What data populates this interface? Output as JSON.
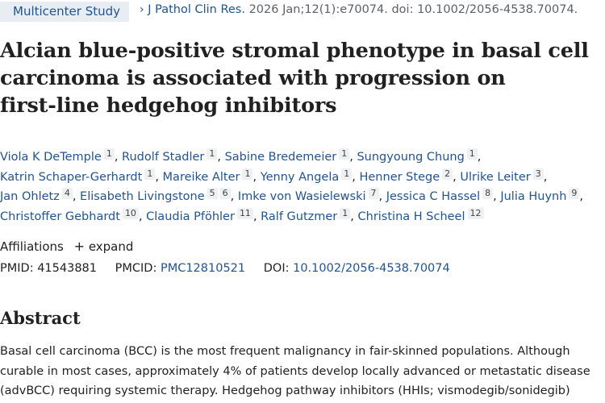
{
  "header": {
    "badge": "Multicenter Study",
    "chevron": "›",
    "journal": "J Pathol Clin Res.",
    "citation_rest": " 2026 Jan;12(1):e70074. doi: 10.1002/2056-4538.70074."
  },
  "article": {
    "title": "Alcian blue‑positive stromal phenotype in basal cell carcinoma is associated with progression on first‑line hedgehog inhibitors"
  },
  "authors": [
    {
      "name": "Viola K DeTemple",
      "affils": [
        "1"
      ]
    },
    {
      "name": "Rudolf Stadler",
      "affils": [
        "1"
      ]
    },
    {
      "name": "Sabine Bredemeier",
      "affils": [
        "1"
      ]
    },
    {
      "name": "Sungyoung Chung",
      "affils": [
        "1"
      ]
    },
    {
      "name": "Katrin Schaper-Gerhardt",
      "affils": [
        "1"
      ]
    },
    {
      "name": "Mareike Alter",
      "affils": [
        "1"
      ]
    },
    {
      "name": "Yenny Angela",
      "affils": [
        "1"
      ]
    },
    {
      "name": "Henner Stege",
      "affils": [
        "2"
      ]
    },
    {
      "name": "Ulrike Leiter",
      "affils": [
        "3"
      ]
    },
    {
      "name": "Jan Ohletz",
      "affils": [
        "4"
      ]
    },
    {
      "name": "Elisabeth Livingstone",
      "affils": [
        "5",
        "6"
      ]
    },
    {
      "name": "Imke von Wasielewski",
      "affils": [
        "7"
      ]
    },
    {
      "name": "Jessica C Hassel",
      "affils": [
        "8"
      ]
    },
    {
      "name": "Julia Huynh",
      "affils": [
        "9"
      ]
    },
    {
      "name": "Christoffer Gebhardt",
      "affils": [
        "10"
      ]
    },
    {
      "name": "Claudia Pföhler",
      "affils": [
        "11"
      ]
    },
    {
      "name": "Ralf Gutzmer",
      "affils": [
        "1"
      ]
    },
    {
      "name": "Christina H Scheel",
      "affils": [
        "12"
      ]
    }
  ],
  "affiliations": {
    "label": "Affiliations",
    "expand_icon": "+",
    "expand_label": "expand"
  },
  "ids": {
    "pmid_label": "PMID:",
    "pmid": "41543881",
    "pmcid_label": "PMCID:",
    "pmcid": "PMC12810521",
    "doi_label": "DOI:",
    "doi": "10.1002/2056-4538.70074"
  },
  "abstract": {
    "heading": "Abstract",
    "text": "Basal cell carcinoma (BCC) is the most frequent malignancy in fair-skinned populations. Although curable in most cases, approximately 4% of patients develop locally advanced or metastatic disease (advBCC) requiring systemic therapy. Hedgehog pathway inhibitors (HHIs; vismodegib/sonidegib)"
  }
}
